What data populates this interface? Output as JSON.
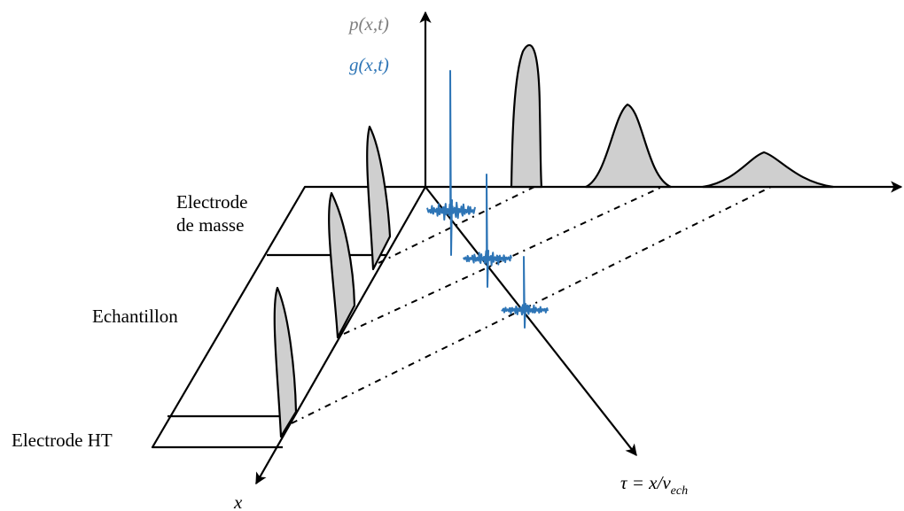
{
  "axes": {
    "vertical_top": "p(x,t)",
    "vertical_bottom": "g(x,t)",
    "x_axis": "x",
    "tau_axis": {
      "prefix": "τ = x/v",
      "subscript": "ech"
    }
  },
  "labels": {
    "ground_electrode_line1": "Electrode",
    "ground_electrode_line2": "de masse",
    "sample": "Echantillon",
    "ht_electrode": "Electrode HT"
  },
  "colors": {
    "p_curve": "#7f7f7f",
    "g_curve": "#2e75b6",
    "pulse_fill": "#cfcfcf",
    "ink": "#000000"
  }
}
